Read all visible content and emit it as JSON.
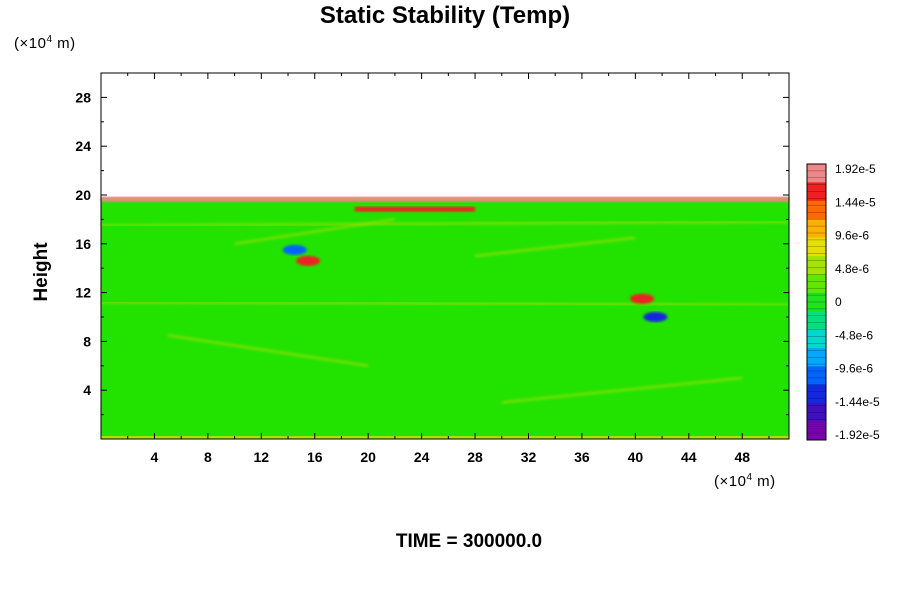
{
  "chart_data": {
    "type": "heatmap",
    "title": "Static Stability (Temp)",
    "ylabel": "Height",
    "y_unit": "(×10⁴ m)",
    "x_unit": "(×10⁴ m)",
    "xlim": [
      0,
      51.5
    ],
    "ylim": [
      0,
      30
    ],
    "x_ticks": [
      4,
      8,
      12,
      16,
      20,
      24,
      28,
      32,
      36,
      40,
      44,
      48
    ],
    "y_ticks": [
      4,
      8,
      12,
      16,
      20,
      24,
      28
    ],
    "data_top_height": 19.8,
    "colorbar": {
      "min": -1.92e-05,
      "max": 1.92e-05,
      "labels": [
        "1.92e-5",
        "1.44e-5",
        "9.6e-6",
        "4.8e-6",
        "0",
        "-4.8e-6",
        "-9.6e-6",
        "-1.44e-5",
        "-1.92e-5"
      ],
      "colors": [
        "#ee8888",
        "#ee2020",
        "#ff6a00",
        "#ffb000",
        "#e6e000",
        "#a6e400",
        "#60e800",
        "#20e420",
        "#00e080",
        "#00d8d0",
        "#00a8ff",
        "#0064ff",
        "#1428e0",
        "#4010c0",
        "#7800b0"
      ]
    },
    "features": [
      {
        "name": "top boundary layer",
        "x": [
          0,
          51.5
        ],
        "y": 19.6,
        "value": 1.92e-05
      },
      {
        "name": "upper band",
        "x": [
          19,
          28
        ],
        "y": 18.8,
        "value": 1.6e-05
      },
      {
        "name": "left wave",
        "x": 15.5,
        "y": 14.6,
        "value": 1.6e-05
      },
      {
        "name": "left wave trough",
        "x": 14.5,
        "y": 15.5,
        "value": -1.2e-05
      },
      {
        "name": "right wave",
        "x": 40.5,
        "y": 11.5,
        "value": 1.6e-05
      },
      {
        "name": "right wave trough",
        "x": 41.5,
        "y": 10,
        "value": -1.4e-05
      }
    ]
  },
  "footer": {
    "time_label": "TIME = 300000.0"
  }
}
